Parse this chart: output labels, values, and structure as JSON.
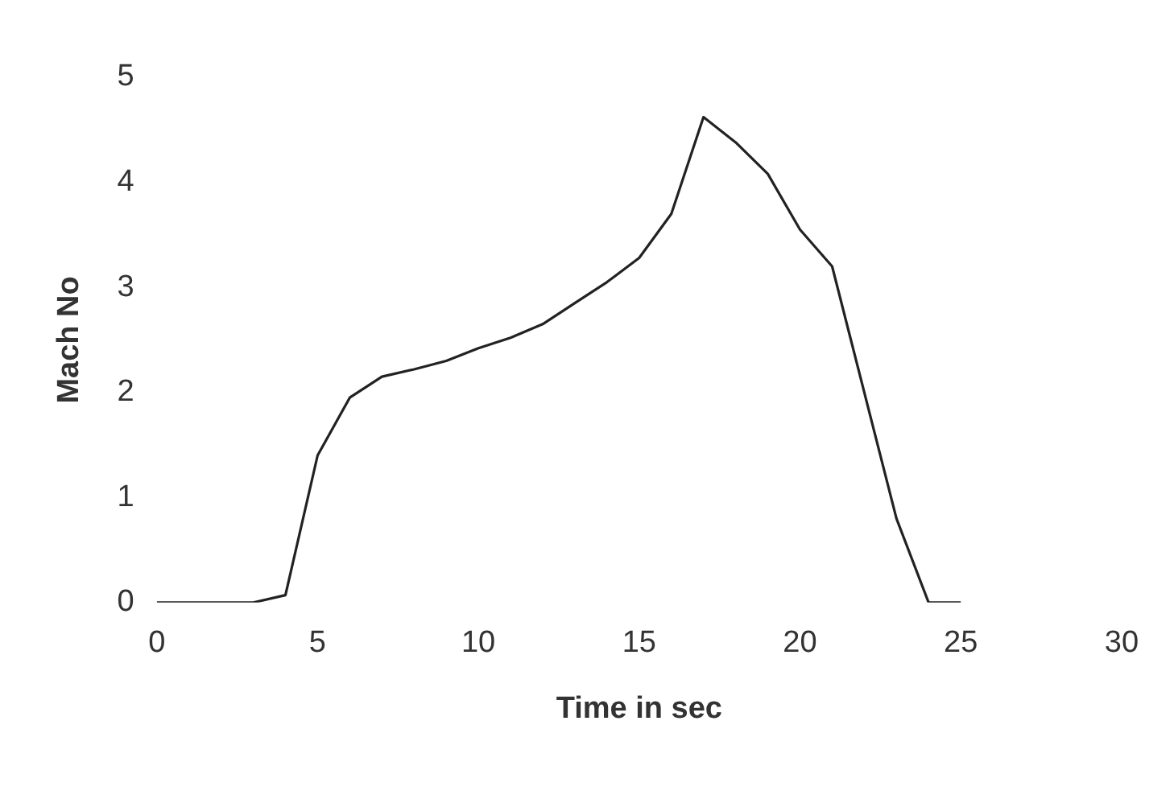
{
  "chart_data": {
    "type": "line",
    "xlabel": "Time in sec",
    "ylabel": "Mach No",
    "x": [
      0,
      3,
      4,
      5,
      6,
      7,
      8,
      9,
      10,
      11,
      12,
      13,
      14,
      15,
      16,
      17,
      18,
      19,
      20,
      21,
      22,
      23,
      24,
      25
    ],
    "series": [
      {
        "color": "#222222",
        "values": [
          0,
          0,
          0.07,
          1.4,
          1.95,
          2.15,
          2.22,
          2.3,
          2.42,
          2.52,
          2.65,
          2.85,
          3.05,
          3.28,
          3.7,
          4.62,
          4.38,
          4.08,
          3.55,
          3.2,
          2.0,
          0.8,
          0,
          0
        ]
      }
    ],
    "xlim": [
      0,
      30
    ],
    "xticks": [
      0,
      5,
      10,
      15,
      20,
      25,
      30
    ],
    "ylim": [
      0,
      5
    ],
    "yticks": [
      0,
      1,
      2,
      3,
      4,
      5
    ],
    "grid": false,
    "legend": false,
    "marker": "none",
    "line_style": "solid"
  }
}
